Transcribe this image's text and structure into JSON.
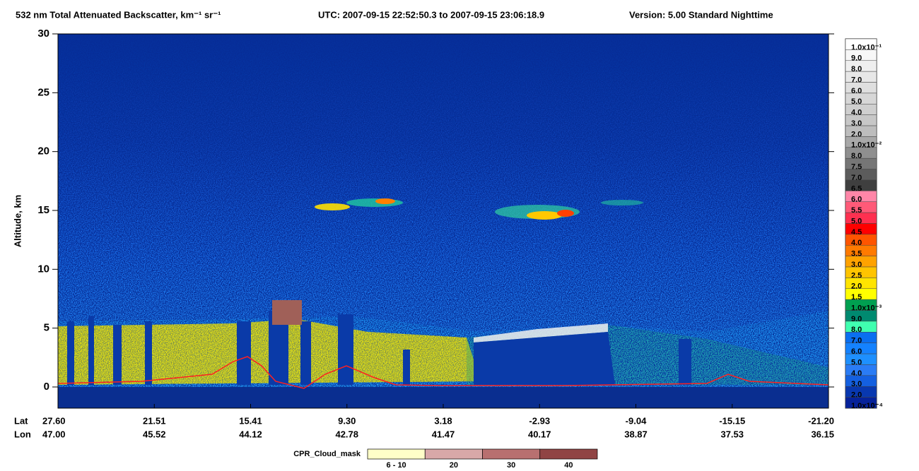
{
  "chart_data": {
    "type": "heatmap",
    "title": "532 nm Total Attenuated Backscatter, km⁻¹ sr⁻¹",
    "time_range": "UTC:  2007-09-15 22:52:50.3  to  2007-09-15 23:06:18.9",
    "version": "Version: 5.00  Standard  Nighttime",
    "ylabel": "Altitude, km",
    "ylim": [
      -1.8,
      30
    ],
    "yticks": [
      0,
      5,
      10,
      15,
      20,
      25,
      30
    ],
    "x_row_labels": [
      "Lat",
      "Lon"
    ],
    "lat": [
      "27.60",
      "21.51",
      "15.41",
      "9.30",
      "3.18",
      "-2.93",
      "-9.04",
      "-15.15",
      "-21.20"
    ],
    "lon": [
      "47.00",
      "45.52",
      "44.12",
      "42.78",
      "41.47",
      "40.17",
      "38.87",
      "37.53",
      "36.15"
    ],
    "colorbar": {
      "labels": [
        "1.0x10⁻¹",
        "9.0",
        "8.0",
        "7.0",
        "6.0",
        "5.0",
        "4.0",
        "3.0",
        "2.0",
        "1.0x10⁻²",
        "8.0",
        "7.5",
        "7.0",
        "6.5",
        "6.0",
        "5.5",
        "5.0",
        "4.5",
        "4.0",
        "3.5",
        "3.0",
        "2.5",
        "2.0",
        "1.5",
        "1.0x10⁻³",
        "9.0",
        "8.0",
        "7.0",
        "6.0",
        "5.0",
        "4.0",
        "3.0",
        "2.0",
        "1.0x10⁻⁴"
      ],
      "colors": [
        "#ffffff",
        "#f7f7f7",
        "#efefef",
        "#e7e7e7",
        "#dfdfdf",
        "#d7d7d7",
        "#cfcfcf",
        "#c7c7c7",
        "#bdbdbd",
        "#a8a8a8",
        "#8f8f8f",
        "#767676",
        "#5c5c5c",
        "#3f3f3f",
        "#ff86a8",
        "#ff5a78",
        "#ff3050",
        "#ff0000",
        "#ff5500",
        "#ff7a00",
        "#ffa200",
        "#ffc400",
        "#ffe400",
        "#ffff00",
        "#00a050",
        "#008a70",
        "#40ffb0",
        "#0a6ff0",
        "#1482ff",
        "#1e90ff",
        "#2a7cf5",
        "#1460e0",
        "#0838b0",
        "#06229a"
      ]
    },
    "cloud_mask": {
      "label": "CPR_Cloud_mask",
      "bins": [
        "6 - 10",
        "20",
        "30",
        "40"
      ],
      "colors": [
        "#ffffc8",
        "#d8a8a8",
        "#b87070",
        "#904444"
      ]
    }
  }
}
